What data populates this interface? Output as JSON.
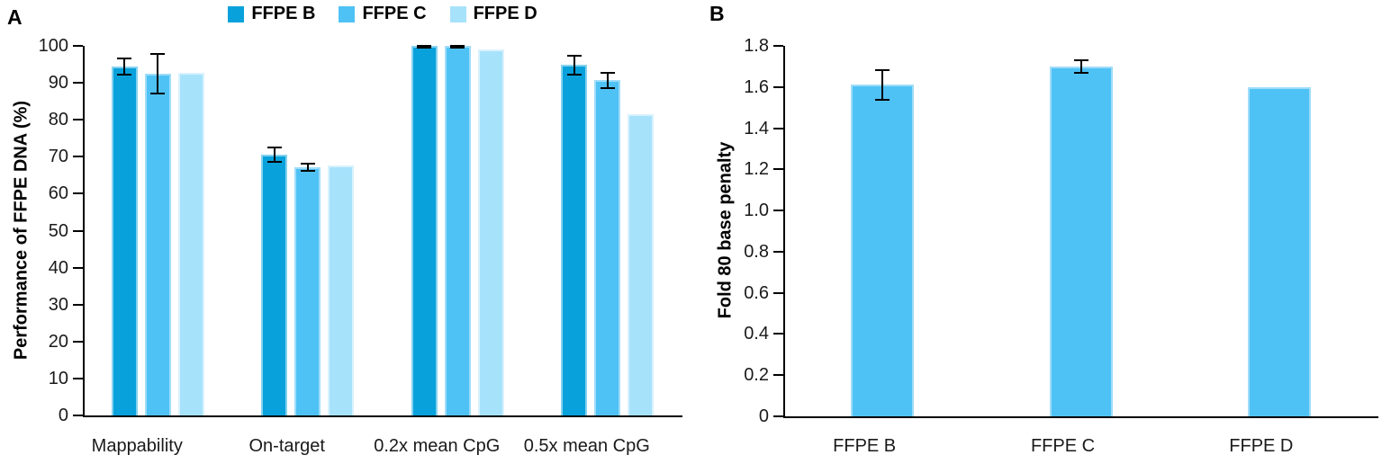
{
  "figure": {
    "panel_a_label": "A",
    "panel_b_label": "B"
  },
  "chart_data": [
    {
      "type": "bar",
      "panel": "A",
      "title": "A",
      "xlabel": "",
      "ylabel": "Performance of FFPE DNA (%)",
      "categories": [
        "Mappability",
        "On-target",
        "0.2x mean CpG",
        "0.5x mean CpG"
      ],
      "series": [
        {
          "name": "FFPE B",
          "color": "#08a1db",
          "border": "#83d2ef",
          "values": [
            94.3,
            70.6,
            100,
            94.8
          ],
          "errors": [
            2.2,
            1.9,
            0.4,
            2.6
          ]
        },
        {
          "name": "FFPE C",
          "color": "#4fc2f5",
          "border": "#9fdcf9",
          "values": [
            92.4,
            67.2,
            100,
            90.7
          ],
          "errors": [
            5.3,
            1.0,
            0.4,
            2.1
          ]
        },
        {
          "name": "FFPE D",
          "color": "#a7e2fb",
          "border": "#d8f2fd",
          "values": [
            92.6,
            67.7,
            99.0,
            81.6
          ],
          "errors": [
            null,
            null,
            null,
            null
          ]
        }
      ],
      "ylim": [
        0,
        100
      ],
      "yticks": [
        0,
        10,
        20,
        30,
        40,
        50,
        60,
        70,
        80,
        90,
        100
      ],
      "ytick_labels": [
        "0",
        "10",
        "20",
        "30",
        "40",
        "50",
        "60",
        "70",
        "80",
        "90",
        "100"
      ],
      "legend_position": "top",
      "grid": false,
      "error_bar_color": "#000000"
    },
    {
      "type": "bar",
      "panel": "B",
      "title": "B",
      "xlabel": "",
      "ylabel": "Fold 80 base penalty",
      "categories": [
        "FFPE B",
        "FFPE C",
        "FFPE D"
      ],
      "series": [
        {
          "name": "",
          "color": "#4fc2f5",
          "border": "#9fdcf9",
          "values": [
            1.61,
            1.7,
            1.6
          ],
          "errors": [
            0.07,
            0.03,
            null
          ]
        }
      ],
      "ylim": [
        0,
        1.8
      ],
      "yticks": [
        0,
        0.2,
        0.4,
        0.6,
        0.8,
        1.0,
        1.2,
        1.4,
        1.6,
        1.8
      ],
      "ytick_labels": [
        "0",
        "0.2",
        "0.4",
        "0.6",
        "0.8",
        "1.0",
        "1.2",
        "1.4",
        "1.6",
        "1.8"
      ],
      "legend_position": "none",
      "grid": false,
      "error_bar_color": "#000000"
    }
  ]
}
